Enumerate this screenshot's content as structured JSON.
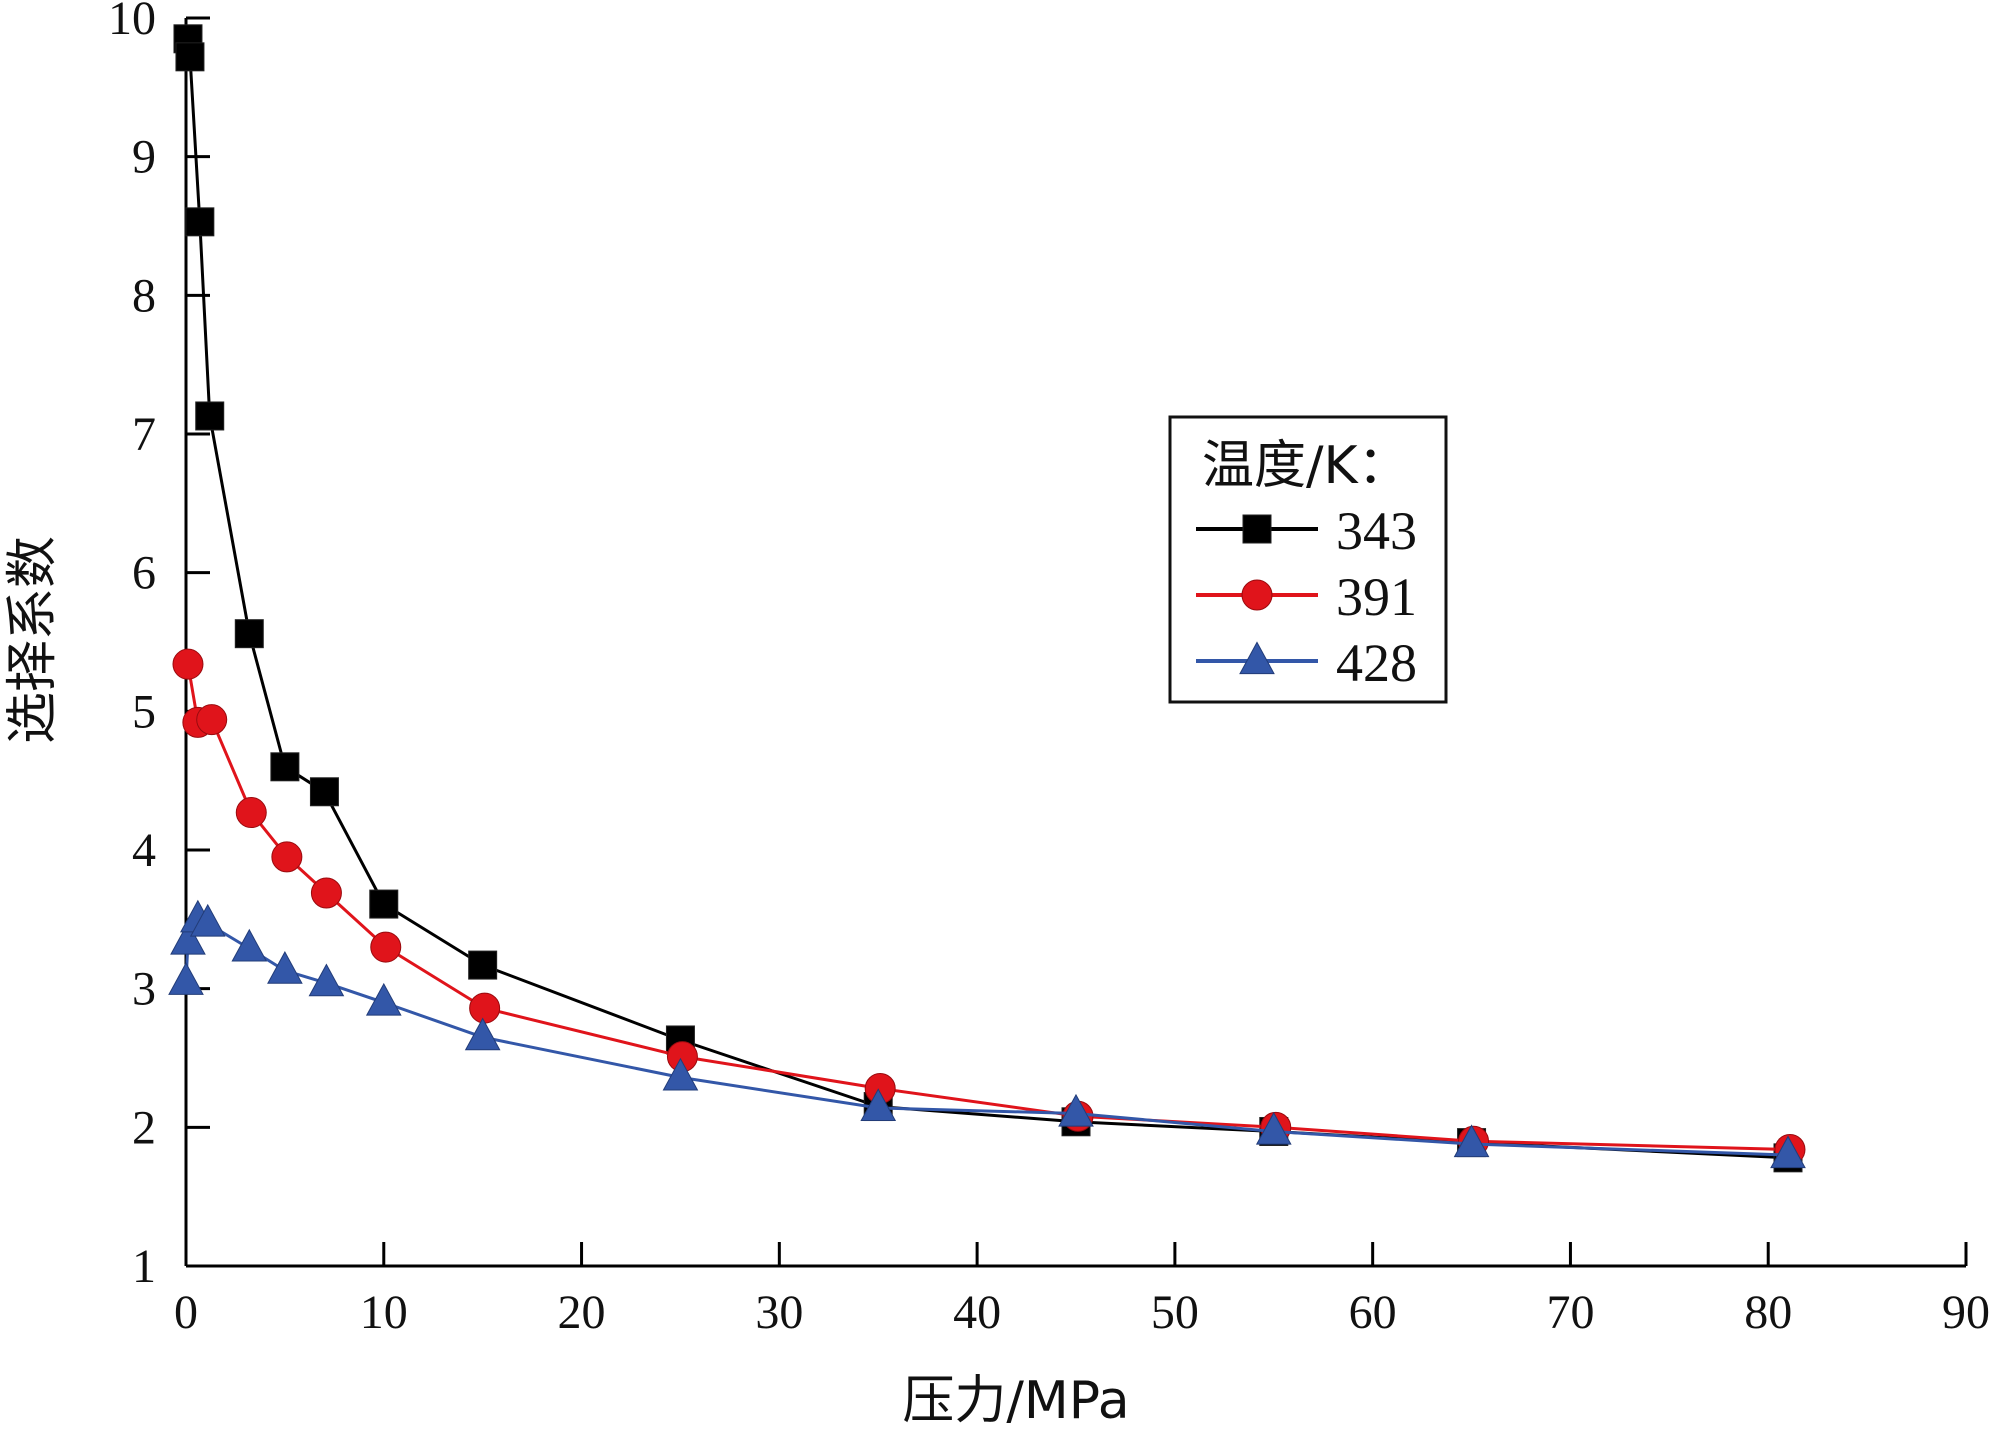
{
  "chart_data": {
    "type": "line",
    "title": "",
    "xlabel": "压力/MPa",
    "ylabel": "选择系数",
    "xlim": [
      0,
      90
    ],
    "ylim": [
      1,
      10
    ],
    "xticks": [
      0,
      10,
      20,
      30,
      40,
      50,
      60,
      70,
      80,
      90
    ],
    "yticks": [
      1,
      2,
      3,
      4,
      5,
      6,
      7,
      8,
      9,
      10
    ],
    "grid": false,
    "legend": {
      "title": "温度/K：",
      "placement": "center-right"
    },
    "series": [
      {
        "name": "343",
        "color": "#000000",
        "marker": "square",
        "x": [
          0.1,
          0.2,
          0.7,
          1.2,
          3.2,
          5.0,
          7.0,
          10.0,
          15.0,
          25.0,
          35.0,
          45.0,
          55.0,
          65.0,
          81.0
        ],
        "y": [
          9.85,
          9.72,
          8.53,
          7.13,
          5.56,
          4.6,
          4.42,
          3.61,
          3.17,
          2.63,
          2.15,
          2.04,
          1.97,
          1.89,
          1.78
        ]
      },
      {
        "name": "391",
        "color": "#e0141b",
        "marker": "circle",
        "x": [
          0.1,
          0.6,
          1.3,
          3.3,
          5.1,
          7.1,
          10.1,
          15.1,
          25.1,
          35.1,
          45.1,
          55.1,
          65.1,
          81.1
        ],
        "y": [
          5.34,
          4.92,
          4.94,
          4.27,
          3.95,
          3.69,
          3.3,
          2.86,
          2.51,
          2.28,
          2.08,
          2.0,
          1.9,
          1.84
        ]
      },
      {
        "name": "428",
        "color": "#3357a8",
        "marker": "triangle",
        "x": [
          0.0,
          0.1,
          0.6,
          1.1,
          3.2,
          5.0,
          7.1,
          10.0,
          15.0,
          25.0,
          35.0,
          45.0,
          55.0,
          65.0,
          81.0
        ],
        "y": [
          3.05,
          3.34,
          3.5,
          3.47,
          3.29,
          3.13,
          3.04,
          2.9,
          2.65,
          2.36,
          2.14,
          2.1,
          1.97,
          1.88,
          1.8
        ]
      }
    ]
  }
}
